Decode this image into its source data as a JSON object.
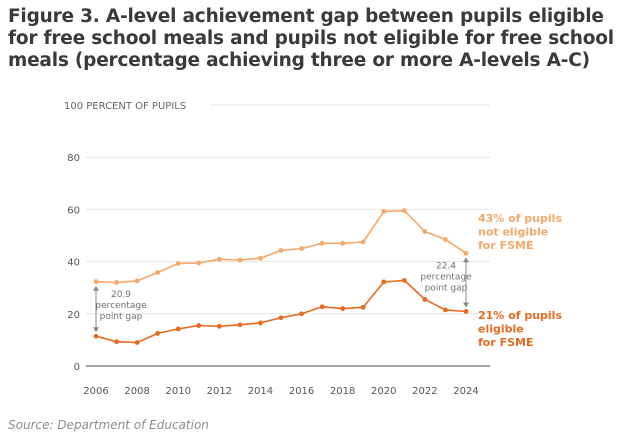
{
  "figure": {
    "title": "Figure 3. A-level achievement gap between pupils eligible for free school meals and pupils not eligible for free school meals (percentage achieving three or more A-levels A-C)",
    "source": "Source: Department of Education"
  },
  "colors": {
    "not_eligible": "#f5a86b",
    "eligible": "#e86a1f",
    "annotation_arrow": "#8a8a8a",
    "axis": "#444444",
    "gridline": "#e4e4e4"
  },
  "chart_data": {
    "type": "line",
    "ylabel": "100 PERCENT OF PUPILS",
    "ylim": [
      0,
      100
    ],
    "yticks": [
      0,
      20,
      40,
      60,
      80
    ],
    "xlim": [
      2006,
      2024
    ],
    "xticks": [
      2006,
      2008,
      2010,
      2012,
      2014,
      2016,
      2018,
      2020,
      2022,
      2024
    ],
    "grid": true,
    "series": [
      {
        "key": "not_eligible",
        "name": "43% of pupils not eligible for FSME",
        "label_lines": [
          "43% of pupils",
          "not eligible",
          "for FSME"
        ],
        "x": [
          2006,
          2007,
          2008,
          2009,
          2010,
          2011,
          2012,
          2013,
          2014,
          2015,
          2016,
          2017,
          2018,
          2019,
          2020,
          2021,
          2022,
          2023,
          2024
        ],
        "y": [
          32.3,
          32.0,
          32.6,
          35.8,
          39.3,
          39.5,
          40.9,
          40.6,
          41.3,
          44.3,
          45.0,
          47.0,
          47.0,
          47.5,
          59.2,
          59.5,
          51.5,
          48.5,
          43.2
        ]
      },
      {
        "key": "eligible",
        "name": "21% of pupils eligible for FSME",
        "label_lines": [
          "21% of pupils",
          "eligible",
          "for FSME"
        ],
        "x": [
          2006,
          2007,
          2008,
          2009,
          2010,
          2011,
          2012,
          2013,
          2014,
          2015,
          2016,
          2017,
          2018,
          2019,
          2020,
          2021,
          2022,
          2023,
          2024
        ],
        "y": [
          11.4,
          9.3,
          9.0,
          12.5,
          14.2,
          15.5,
          15.2,
          15.8,
          16.5,
          18.5,
          20.0,
          22.7,
          22.0,
          22.5,
          32.2,
          32.8,
          25.5,
          21.5,
          20.9
        ]
      }
    ],
    "annotations": [
      {
        "at_x": 2006,
        "from_y": 11.4,
        "to_y": 32.3,
        "text_lines": [
          "20.9",
          "percentage",
          "point gap"
        ]
      },
      {
        "at_x": 2024,
        "from_y": 20.9,
        "to_y": 43.2,
        "text_lines": [
          "22.4",
          "percentage",
          "point gap"
        ]
      }
    ]
  }
}
